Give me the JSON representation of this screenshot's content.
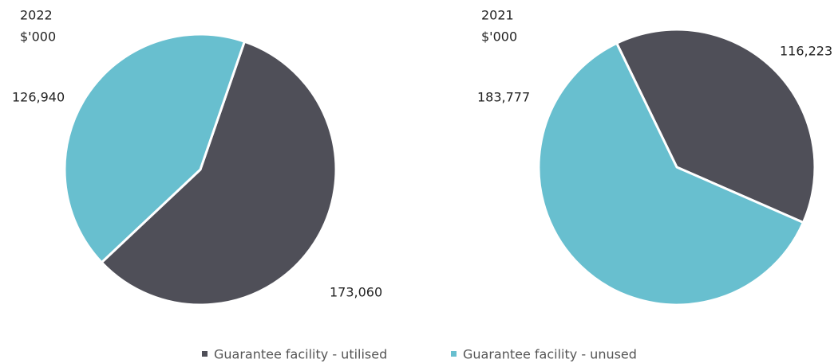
{
  "chart_data": [
    {
      "type": "pie",
      "title": "2022",
      "subtitle": "$'000",
      "values": [
        173060,
        126940
      ],
      "value_labels": [
        "173,060",
        "126,940"
      ]
    },
    {
      "type": "pie",
      "title": "2021",
      "subtitle": "$'000",
      "values": [
        116223,
        183777
      ],
      "value_labels": [
        "116,223",
        "183,777"
      ]
    }
  ],
  "legend": {
    "labels": [
      "Guarantee facility - utilised",
      "Guarantee facility - unused"
    ],
    "colors": [
      "#4f4f58",
      "#68bfcf"
    ]
  }
}
